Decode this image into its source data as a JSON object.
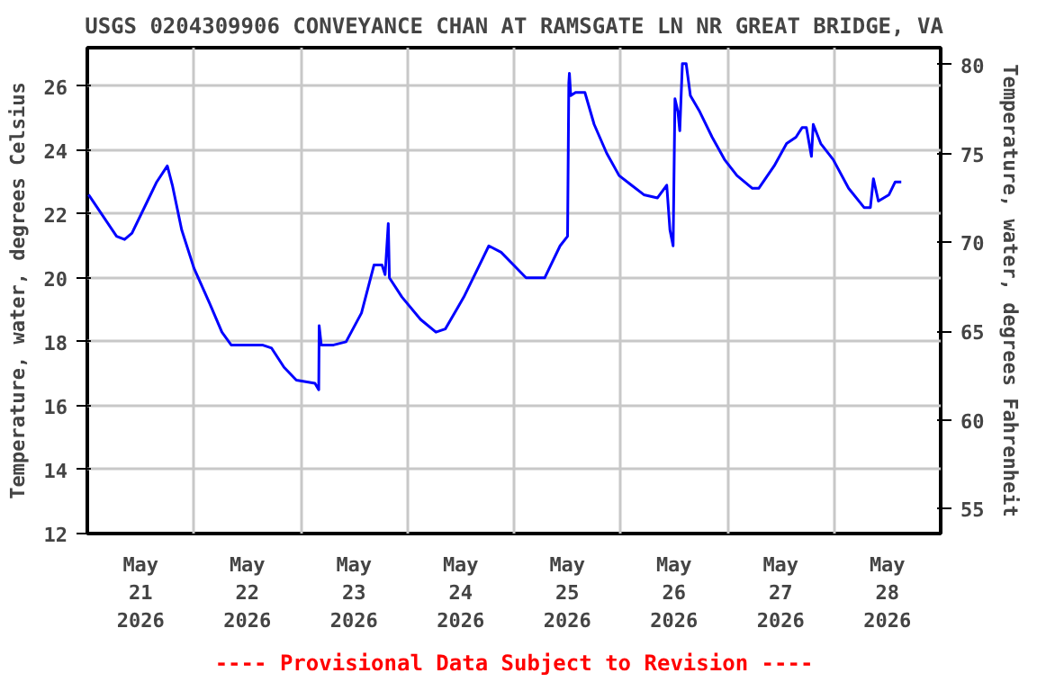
{
  "chart_data": {
    "type": "line",
    "title": "USGS 0204309906 CONVEYANCE CHAN AT RAMSGATE LN NR GREAT BRIDGE, VA",
    "ylabel": "Temperature, water, degrees Celsius",
    "y2label": "Temperature, water, degrees Fahrenheit",
    "annotations": [
      "---- Provisional Data Subject to Revision ----"
    ],
    "x": [
      "2026-05-21T00:17",
      "2026-05-21T06:35",
      "2026-05-21T08:23",
      "2026-05-21T10:03",
      "2026-05-21T13:32",
      "2026-05-21T15:37",
      "2026-05-21T18:00",
      "2026-05-21T19:08",
      "2026-05-21T21:14",
      "2026-05-22T00:00",
      "2026-05-22T03:31",
      "2026-05-22T06:17",
      "2026-05-22T08:22",
      "2026-05-22T15:22",
      "2026-05-22T17:28",
      "2026-05-22T20:16",
      "2026-05-22T23:02",
      "2026-05-23T03:13",
      "2026-05-23T04:04",
      "2026-05-23T04:10",
      "2026-05-23T04:38",
      "2026-05-23T07:25",
      "2026-05-23T10:13",
      "2026-05-23T13:41",
      "2026-05-23T16:30",
      "2026-05-23T18:18",
      "2026-05-23T19:00",
      "2026-05-23T19:43",
      "2026-05-23T19:58",
      "2026-05-23T22:47",
      "2026-05-24T02:58",
      "2026-05-24T06:26",
      "2026-05-24T08:32",
      "2026-05-24T12:43",
      "2026-05-24T16:14",
      "2026-05-24T18:20",
      "2026-05-24T21:06",
      "2026-05-24T23:54",
      "2026-05-25T02:43",
      "2026-05-25T06:54",
      "2026-05-25T10:22",
      "2026-05-25T12:03",
      "2026-05-25T12:20",
      "2026-05-25T12:28",
      "2026-05-25T12:46",
      "2026-05-25T13:51",
      "2026-05-25T15:57",
      "2026-05-25T18:02",
      "2026-05-25T20:51",
      "2026-05-25T23:39",
      "2026-05-26T02:25",
      "2026-05-26T05:13",
      "2026-05-26T08:17",
      "2026-05-26T10:22",
      "2026-05-26T11:05",
      "2026-05-26T11:48",
      "2026-05-26T12:13",
      "2026-05-26T12:53",
      "2026-05-26T13:18",
      "2026-05-26T13:53",
      "2026-05-26T14:44",
      "2026-05-26T15:41",
      "2026-05-26T17:47",
      "2026-05-26T20:35",
      "2026-05-26T23:22",
      "2026-05-27T02:10",
      "2026-05-27T05:38",
      "2026-05-27T07:04",
      "2026-05-27T10:32",
      "2026-05-27T13:20",
      "2026-05-27T15:26",
      "2026-05-27T16:49",
      "2026-05-27T17:47",
      "2026-05-27T18:55",
      "2026-05-27T19:20",
      "2026-05-27T21:01",
      "2026-05-27T23:49",
      "2026-05-28T03:17",
      "2026-05-28T06:46",
      "2026-05-28T08:11",
      "2026-05-28T08:52",
      "2026-05-28T09:59",
      "2026-05-28T12:22",
      "2026-05-28T13:46",
      "2026-05-28T15:08"
    ],
    "series": [
      {
        "color": "#0000ff",
        "values": [
          22.6,
          21.3,
          21.2,
          21.4,
          22.4,
          23.0,
          23.5,
          22.9,
          21.5,
          20.3,
          19.2,
          18.3,
          17.9,
          17.9,
          17.8,
          17.2,
          16.8,
          16.7,
          16.5,
          18.5,
          17.9,
          17.9,
          18.0,
          18.9,
          20.4,
          20.4,
          20.1,
          21.7,
          20.0,
          19.4,
          18.7,
          18.3,
          18.4,
          19.4,
          20.4,
          21.0,
          20.8,
          20.4,
          20.0,
          20.0,
          21.0,
          21.3,
          26.1,
          26.4,
          25.7,
          25.8,
          25.8,
          24.8,
          23.9,
          23.2,
          22.9,
          22.6,
          22.5,
          22.9,
          21.5,
          21.0,
          25.6,
          25.2,
          24.6,
          26.7,
          26.7,
          25.7,
          25.2,
          24.4,
          23.7,
          23.2,
          22.8,
          22.8,
          23.5,
          24.2,
          24.4,
          24.7,
          24.7,
          23.8,
          24.8,
          24.2,
          23.7,
          22.8,
          22.2,
          22.2,
          23.1,
          22.4,
          22.6,
          23.0,
          23.0
        ]
      }
    ],
    "xlim": [
      "2026-05-21T00:00",
      "2026-05-29T00:00"
    ],
    "xticks": [
      {
        "value": "2026-05-21T12:00",
        "label": "May\n21\n2026"
      },
      {
        "value": "2026-05-22T12:00",
        "label": "May\n22\n2026"
      },
      {
        "value": "2026-05-23T12:00",
        "label": "May\n23\n2026"
      },
      {
        "value": "2026-05-24T12:00",
        "label": "May\n24\n2026"
      },
      {
        "value": "2026-05-25T12:00",
        "label": "May\n25\n2026"
      },
      {
        "value": "2026-05-26T12:00",
        "label": "May\n26\n2026"
      },
      {
        "value": "2026-05-27T12:00",
        "label": "May\n27\n2026"
      },
      {
        "value": "2026-05-28T12:00",
        "label": "May\n28\n2026"
      },
      {
        "value": "2026-05-22T00:00",
        "label": null
      },
      {
        "value": "2026-05-23T00:00",
        "label": null
      },
      {
        "value": "2026-05-24T00:00",
        "label": null
      },
      {
        "value": "2026-05-25T00:00",
        "label": null
      },
      {
        "value": "2026-05-26T00:00",
        "label": null
      },
      {
        "value": "2026-05-27T00:00",
        "label": null
      },
      {
        "value": "2026-05-28T00:00",
        "label": null
      }
    ],
    "ylim": [
      12,
      27.2
    ],
    "yticks": [
      12,
      14,
      16,
      18,
      20,
      22,
      24,
      26
    ],
    "y2lim": [
      53.6,
      80.96
    ],
    "y2ticks": [
      55,
      60,
      65,
      70,
      75,
      80
    ],
    "grid": true,
    "line_style": "solid",
    "marker": "none"
  }
}
